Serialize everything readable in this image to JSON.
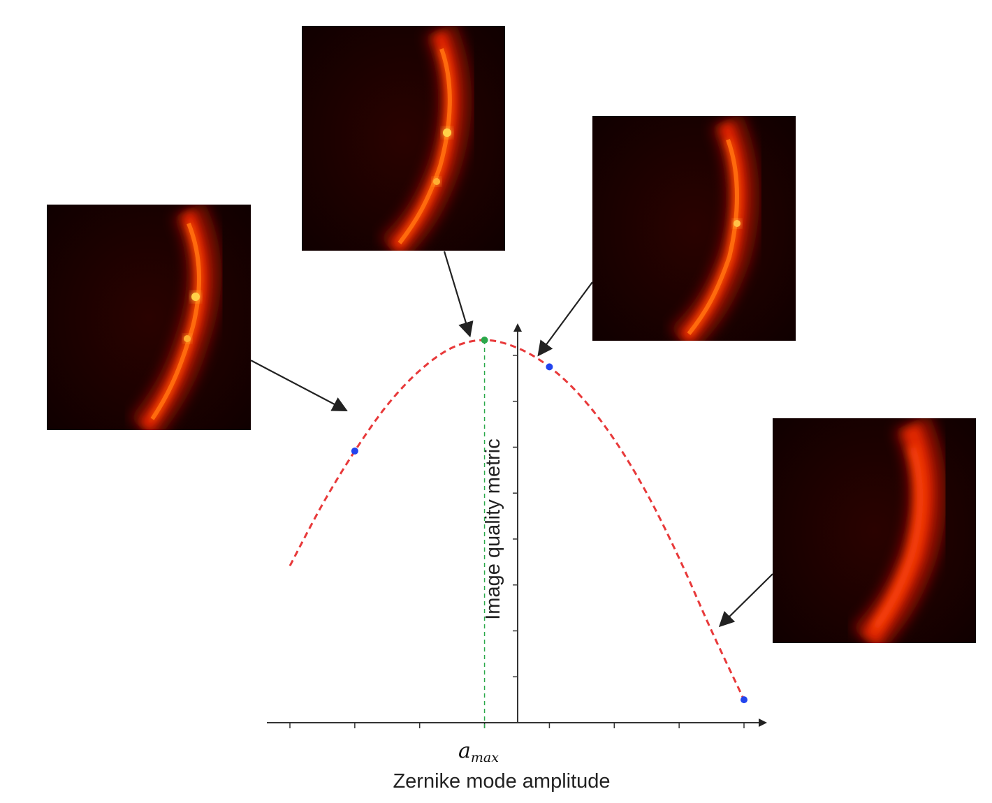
{
  "diagram": {
    "axis_label_y": "Image quality metric",
    "axis_label_x": "Zernike mode amplitude",
    "peak_label_symbol": "a",
    "peak_label_subscript": "max",
    "colors": {
      "curve": "#e8393a",
      "peak_marker": "#2aa84a",
      "peak_line": "#2aa84a",
      "sample_marker": "#2244ee",
      "axis": "#333333",
      "arrow": "#222222",
      "image_background": "#1a0000",
      "image_signal": "#ff2a00"
    },
    "icons": {
      "sample_images": "fluorescence-image-icon",
      "pointer": "arrow-icon"
    }
  },
  "chart_data": {
    "type": "line",
    "series": [
      {
        "values_note_free": true,
        "x": [
          -3.0,
          -2.5,
          -2.0,
          -1.5,
          -1.0,
          -0.5,
          0.0,
          0.5,
          1.0,
          1.5,
          2.0,
          2.5,
          3.0,
          3.5,
          4.0
        ],
        "y": [
          0.41,
          0.57,
          0.71,
          0.83,
          0.92,
          0.98,
          1.0,
          0.98,
          0.93,
          0.85,
          0.74,
          0.6,
          0.43,
          0.24,
          0.06
        ]
      }
    ],
    "samples": [
      {
        "x": -2.0,
        "y": 0.71,
        "kind": "sample"
      },
      {
        "x": 0.0,
        "y": 1.0,
        "kind": "peak"
      },
      {
        "x": 1.0,
        "y": 0.93,
        "kind": "sample"
      },
      {
        "x": 4.0,
        "y": 0.06,
        "kind": "sample"
      }
    ],
    "xlim": [
      -3.5,
      4.5
    ],
    "ylim": [
      0.0,
      1.1
    ],
    "grid": false
  }
}
